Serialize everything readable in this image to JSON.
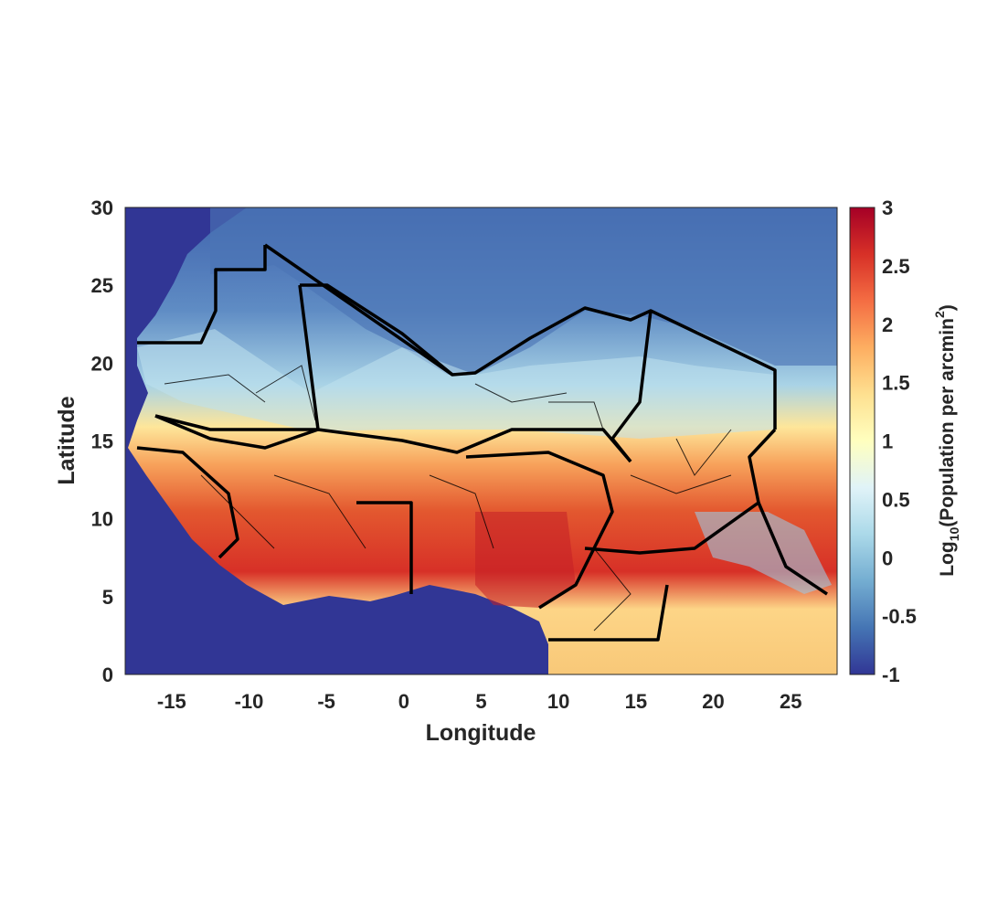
{
  "chart_data": {
    "type": "heatmap",
    "title": "",
    "xlabel": "Longitude",
    "ylabel": "Latitude",
    "xlim": [
      -18,
      28
    ],
    "ylim": [
      0,
      30
    ],
    "xticks": [
      -15,
      -10,
      -5,
      0,
      5,
      10,
      15,
      20,
      25
    ],
    "yticks": [
      0,
      5,
      10,
      15,
      20,
      25,
      30
    ],
    "x_tick_labels": [
      "-15",
      "-10",
      "-5",
      "0",
      "5",
      "10",
      "15",
      "20",
      "25"
    ],
    "y_tick_labels": [
      "0",
      "5",
      "10",
      "15",
      "20",
      "25",
      "30"
    ],
    "colorbar": {
      "label_prefix": "Log",
      "label_sub": "10",
      "label_main": "(Population per arcmin",
      "label_sup": "2",
      "label_suffix": ")",
      "range": [
        -1,
        3
      ],
      "ticks": [
        -1,
        -0.5,
        0,
        0.5,
        1,
        1.5,
        2,
        2.5,
        3
      ],
      "tick_labels": [
        "-1",
        "-0.5",
        "0",
        "0.5",
        "1",
        "1.5",
        "2",
        "2.5",
        "3"
      ],
      "colormap": "RdYlBu_r",
      "colors": [
        "#313695",
        "#4575b4",
        "#74add1",
        "#abd9e9",
        "#e0f3f8",
        "#ffffbf",
        "#fee090",
        "#fdae61",
        "#f46d43",
        "#d73027",
        "#a50026"
      ]
    },
    "ocean_color": "#313695",
    "border_color": "#000000"
  }
}
